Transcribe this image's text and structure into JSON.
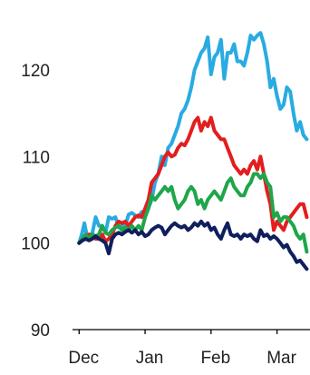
{
  "chart_data": {
    "type": "line",
    "title": "",
    "xlabel": "",
    "ylabel": "",
    "ylim": [
      90,
      126
    ],
    "yticks": [
      90,
      100,
      110,
      120
    ],
    "xticks": [
      "Dec",
      "Jan",
      "Feb",
      "Mar"
    ],
    "x_tick_positions": [
      0,
      1,
      2,
      3
    ],
    "xlim": [
      -0.1,
      3.5
    ],
    "grid": false,
    "legend": "none",
    "series": [
      {
        "color": "#29abe2",
        "x": [
          0.0,
          0.04,
          0.08,
          0.12,
          0.16,
          0.2,
          0.25,
          0.3,
          0.35,
          0.4,
          0.45,
          0.5,
          0.55,
          0.6,
          0.65,
          0.7,
          0.75,
          0.8,
          0.85,
          0.9,
          0.95,
          1.0,
          1.05,
          1.1,
          1.15,
          1.2,
          1.25,
          1.3,
          1.35,
          1.4,
          1.45,
          1.5,
          1.55,
          1.6,
          1.65,
          1.7,
          1.75,
          1.8,
          1.85,
          1.9,
          1.95,
          2.0,
          2.05,
          2.1,
          2.15,
          2.2,
          2.25,
          2.3,
          2.35,
          2.4,
          2.45,
          2.5,
          2.55,
          2.6,
          2.65,
          2.7,
          2.75,
          2.8,
          2.85,
          2.9,
          2.95,
          3.0,
          3.05,
          3.1,
          3.15,
          3.2,
          3.25,
          3.3,
          3.35,
          3.4,
          3.45
        ],
        "values": [
          100.0,
          101.0,
          102.3,
          100.8,
          100.9,
          101.1,
          103.0,
          102.0,
          102.0,
          101.2,
          103.0,
          102.8,
          103.0,
          101.8,
          102.0,
          102.0,
          103.3,
          103.5,
          103.2,
          103.0,
          103.6,
          103.0,
          104.0,
          105.0,
          107.0,
          108.0,
          110.0,
          109.0,
          111.0,
          111.5,
          112.5,
          113.5,
          115.0,
          115.5,
          116.5,
          118.0,
          120.0,
          121.0,
          122.0,
          122.5,
          123.8,
          119.5,
          121.5,
          122.0,
          123.5,
          119.0,
          122.0,
          122.0,
          123.0,
          121.0,
          121.0,
          120.5,
          122.0,
          124.0,
          123.5,
          124.0,
          124.3,
          123.0,
          121.0,
          118.0,
          119.0,
          117.0,
          115.5,
          116.0,
          118.0,
          117.5,
          115.0,
          113.0,
          114.0,
          112.5,
          112.0
        ]
      },
      {
        "color": "#e31e1e",
        "x": [
          0.0,
          0.05,
          0.1,
          0.15,
          0.2,
          0.25,
          0.3,
          0.35,
          0.4,
          0.45,
          0.5,
          0.55,
          0.6,
          0.65,
          0.7,
          0.75,
          0.8,
          0.85,
          0.9,
          0.95,
          1.0,
          1.05,
          1.1,
          1.15,
          1.2,
          1.25,
          1.3,
          1.35,
          1.4,
          1.45,
          1.5,
          1.55,
          1.6,
          1.65,
          1.7,
          1.75,
          1.8,
          1.85,
          1.9,
          1.95,
          2.0,
          2.05,
          2.1,
          2.15,
          2.2,
          2.25,
          2.3,
          2.35,
          2.4,
          2.45,
          2.5,
          2.55,
          2.6,
          2.65,
          2.7,
          2.75,
          2.8,
          2.85,
          2.9,
          2.95,
          3.0,
          3.05,
          3.1,
          3.15,
          3.2,
          3.25,
          3.3,
          3.35,
          3.4,
          3.45
        ],
        "values": [
          100.0,
          100.5,
          100.8,
          101.0,
          100.8,
          100.5,
          100.5,
          101.0,
          100.2,
          100.5,
          101.0,
          102.0,
          102.5,
          102.3,
          102.5,
          102.0,
          102.5,
          103.0,
          103.2,
          103.0,
          104.0,
          105.0,
          107.0,
          107.5,
          108.0,
          109.0,
          110.0,
          110.5,
          110.0,
          110.2,
          111.0,
          111.5,
          111.3,
          112.0,
          113.0,
          114.0,
          114.5,
          113.0,
          114.0,
          113.5,
          114.5,
          113.0,
          112.5,
          112.0,
          112.0,
          111.0,
          110.0,
          109.0,
          108.5,
          108.0,
          108.5,
          108.0,
          109.0,
          109.5,
          108.5,
          110.0,
          108.0,
          106.0,
          104.5,
          101.5,
          102.5,
          102.0,
          101.5,
          102.5,
          103.0,
          103.5,
          104.0,
          104.5,
          104.5,
          103.0
        ]
      },
      {
        "color": "#1fa64a",
        "x": [
          0.0,
          0.05,
          0.1,
          0.15,
          0.2,
          0.25,
          0.3,
          0.35,
          0.4,
          0.45,
          0.5,
          0.55,
          0.6,
          0.65,
          0.7,
          0.75,
          0.8,
          0.85,
          0.9,
          0.95,
          1.0,
          1.05,
          1.1,
          1.15,
          1.2,
          1.25,
          1.3,
          1.35,
          1.4,
          1.45,
          1.5,
          1.55,
          1.6,
          1.65,
          1.7,
          1.75,
          1.8,
          1.85,
          1.9,
          1.95,
          2.0,
          2.05,
          2.1,
          2.15,
          2.2,
          2.25,
          2.3,
          2.35,
          2.4,
          2.45,
          2.5,
          2.55,
          2.6,
          2.65,
          2.7,
          2.75,
          2.8,
          2.85,
          2.9,
          2.95,
          3.0,
          3.05,
          3.1,
          3.15,
          3.2,
          3.25,
          3.3,
          3.35,
          3.4,
          3.45
        ],
        "values": [
          100.0,
          100.5,
          101.0,
          100.5,
          101.0,
          100.8,
          101.0,
          102.0,
          101.2,
          101.0,
          101.5,
          101.8,
          102.0,
          101.5,
          101.8,
          101.5,
          102.0,
          101.5,
          102.0,
          101.5,
          103.0,
          104.0,
          105.5,
          105.0,
          105.5,
          106.0,
          106.5,
          106.0,
          106.5,
          105.0,
          104.0,
          104.5,
          105.0,
          106.0,
          106.5,
          106.0,
          104.5,
          105.0,
          104.0,
          105.0,
          105.5,
          106.0,
          105.5,
          105.0,
          106.0,
          107.0,
          107.5,
          106.5,
          106.0,
          105.5,
          105.5,
          106.5,
          107.0,
          108.0,
          108.0,
          107.5,
          108.0,
          107.0,
          106.5,
          103.0,
          103.5,
          102.5,
          103.0,
          103.0,
          102.5,
          102.0,
          101.0,
          100.5,
          101.0,
          99.0
        ]
      },
      {
        "color": "#0f1f5c",
        "x": [
          0.0,
          0.05,
          0.1,
          0.15,
          0.2,
          0.25,
          0.3,
          0.35,
          0.4,
          0.45,
          0.5,
          0.55,
          0.6,
          0.65,
          0.7,
          0.75,
          0.8,
          0.85,
          0.9,
          0.95,
          1.0,
          1.05,
          1.1,
          1.15,
          1.2,
          1.25,
          1.3,
          1.35,
          1.4,
          1.45,
          1.5,
          1.55,
          1.6,
          1.65,
          1.7,
          1.75,
          1.8,
          1.85,
          1.9,
          1.95,
          2.0,
          2.05,
          2.1,
          2.15,
          2.2,
          2.25,
          2.3,
          2.35,
          2.4,
          2.45,
          2.5,
          2.55,
          2.6,
          2.65,
          2.7,
          2.75,
          2.8,
          2.85,
          2.9,
          2.95,
          3.0,
          3.05,
          3.1,
          3.15,
          3.2,
          3.25,
          3.3,
          3.35,
          3.4,
          3.45
        ],
        "values": [
          100.0,
          100.3,
          100.5,
          100.3,
          100.5,
          100.8,
          100.5,
          100.3,
          100.0,
          98.8,
          100.5,
          101.0,
          101.2,
          101.0,
          101.3,
          101.5,
          101.2,
          101.5,
          101.0,
          101.3,
          100.8,
          101.0,
          101.5,
          101.8,
          102.0,
          101.8,
          101.0,
          101.5,
          102.0,
          102.3,
          102.0,
          101.8,
          102.0,
          101.5,
          101.8,
          102.3,
          102.0,
          102.5,
          102.0,
          102.3,
          101.5,
          101.8,
          101.0,
          100.5,
          101.5,
          102.3,
          101.0,
          100.8,
          101.0,
          100.5,
          101.0,
          100.8,
          101.0,
          100.5,
          100.2,
          101.5,
          100.8,
          101.0,
          100.5,
          100.8,
          100.5,
          100.0,
          99.5,
          99.8,
          99.0,
          98.5,
          97.8,
          98.0,
          97.5,
          97.0
        ]
      }
    ],
    "colors": {
      "axis": "#000000",
      "text": "#222222"
    }
  }
}
